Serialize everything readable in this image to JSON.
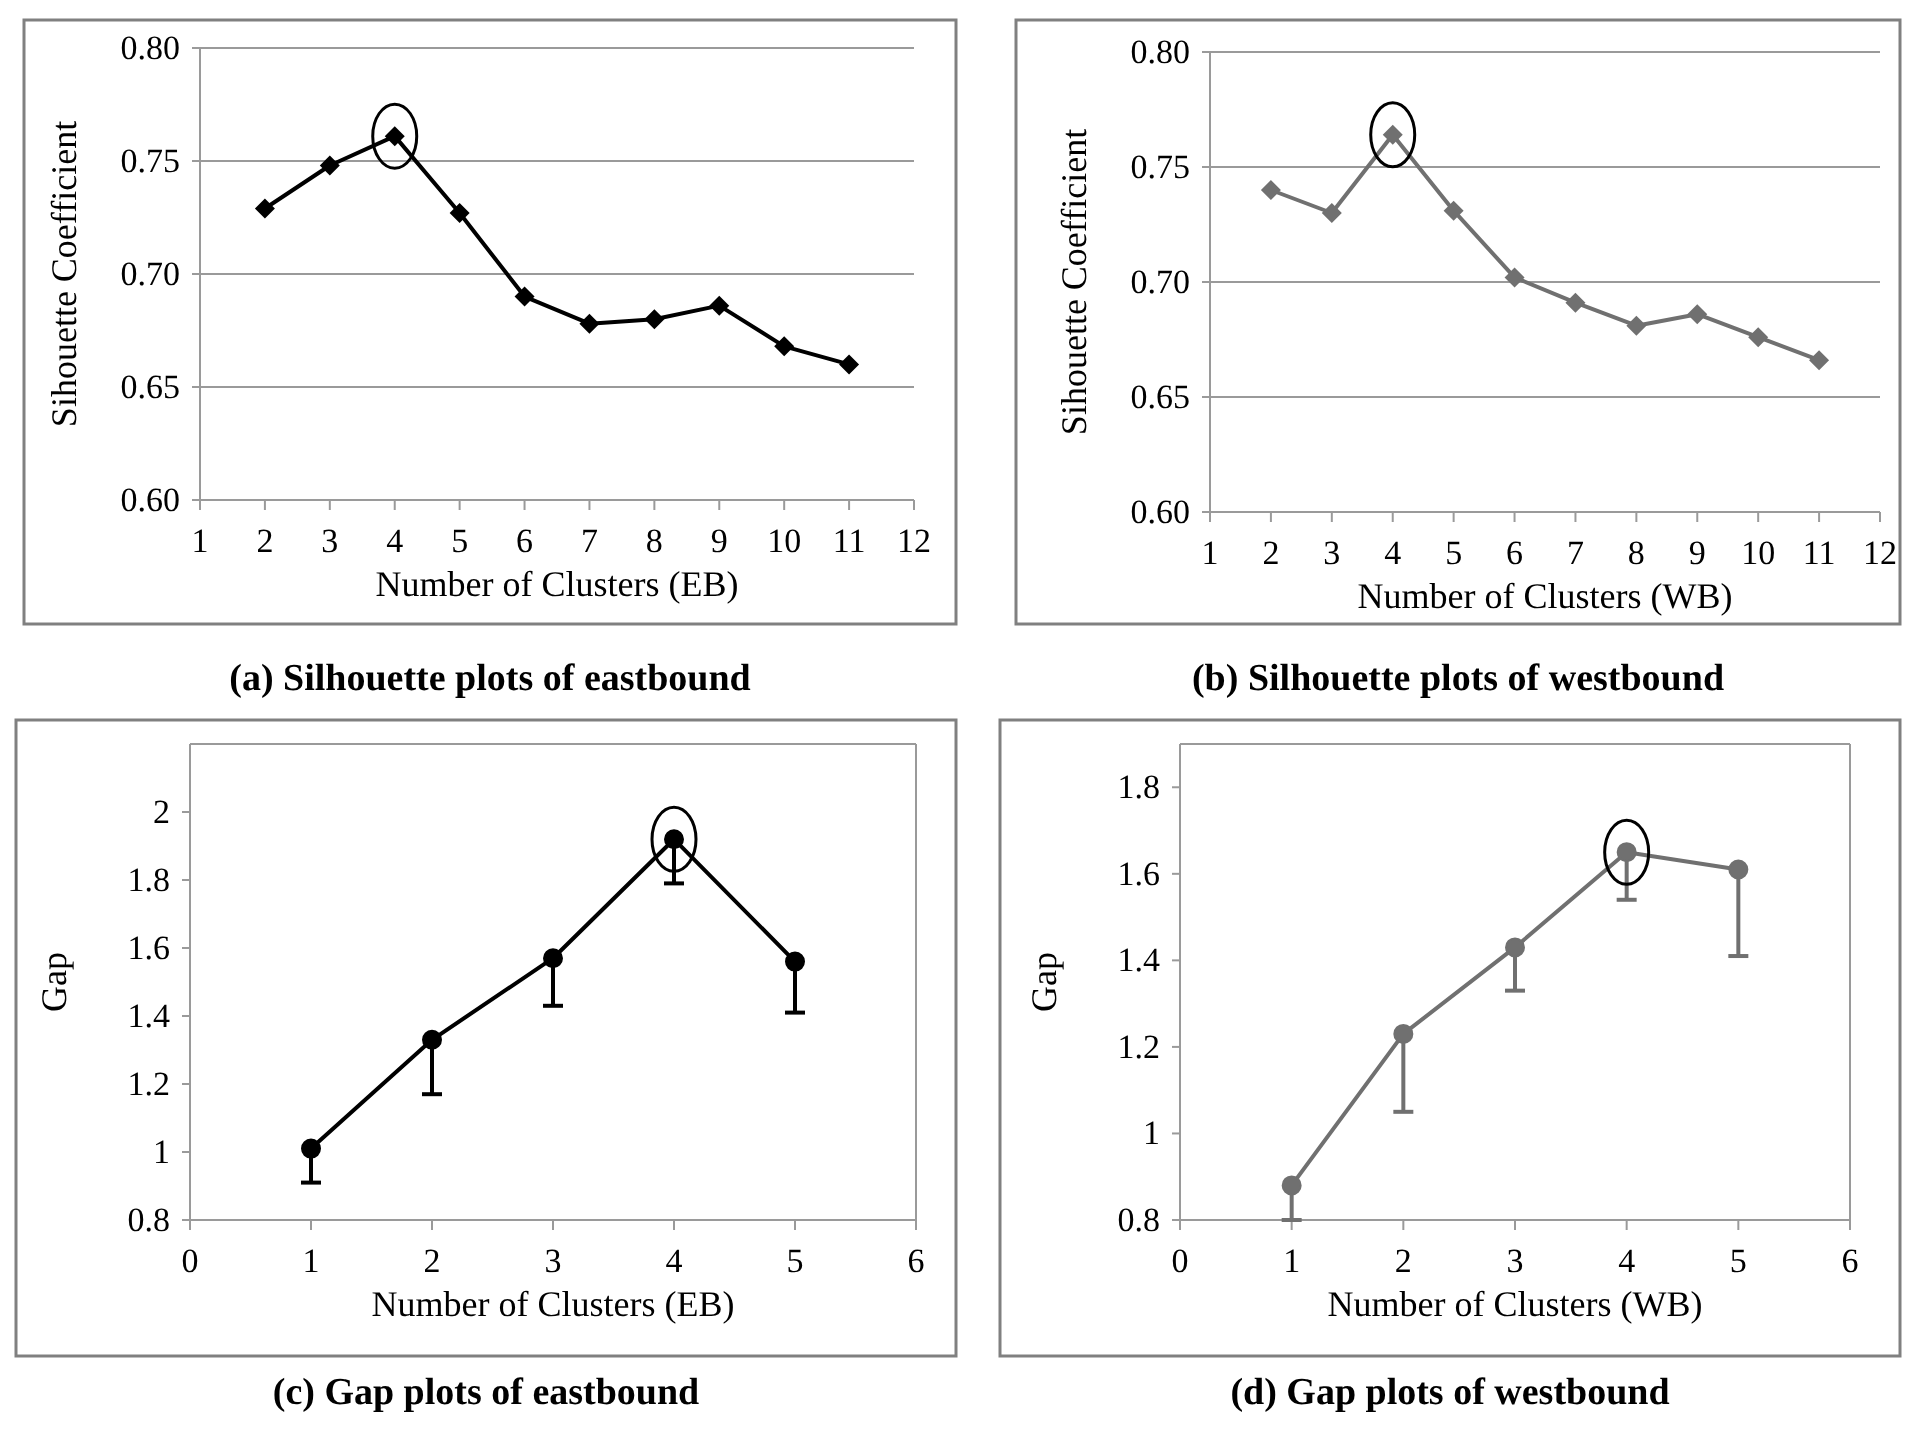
{
  "chart_data": [
    {
      "type": "line",
      "title": "(a) Silhouette plots of eastbound",
      "xlabel": "Number of Clusters (EB)",
      "ylabel": "Sihouette Coefficient",
      "x": [
        2,
        3,
        4,
        5,
        6,
        7,
        8,
        9,
        10,
        11
      ],
      "series": [
        {
          "color": "#000000",
          "values": [
            0.729,
            0.748,
            0.761,
            0.727,
            0.69,
            0.678,
            0.68,
            0.686,
            0.668,
            0.66
          ]
        }
      ],
      "xlim": [
        1,
        12
      ],
      "xticks": [
        1,
        2,
        3,
        4,
        5,
        6,
        7,
        8,
        9,
        10,
        11,
        12
      ],
      "ylim": [
        0.6,
        0.8
      ],
      "yticks": [
        {
          "value": 0.6,
          "label": "0.60"
        },
        {
          "value": 0.65,
          "label": "0.65"
        },
        {
          "value": 0.7,
          "label": "0.70"
        },
        {
          "value": 0.75,
          "label": "0.75"
        },
        {
          "value": 0.8,
          "label": "0.80"
        }
      ],
      "grid": "y",
      "marker": "diamond"
    },
    {
      "type": "line",
      "title": "(b) Silhouette plots of westbound",
      "xlabel": "Number of Clusters (WB)",
      "ylabel": "Sihouette Coefficient",
      "x": [
        2,
        3,
        4,
        5,
        6,
        7,
        8,
        9,
        10,
        11
      ],
      "series": [
        {
          "color": "#707070",
          "values": [
            0.74,
            0.73,
            0.764,
            0.731,
            0.702,
            0.691,
            0.681,
            0.686,
            0.676,
            0.666
          ]
        }
      ],
      "xlim": [
        1,
        12
      ],
      "xticks": [
        1,
        2,
        3,
        4,
        5,
        6,
        7,
        8,
        9,
        10,
        11,
        12
      ],
      "ylim": [
        0.6,
        0.8
      ],
      "yticks": [
        {
          "value": 0.6,
          "label": "0.60"
        },
        {
          "value": 0.65,
          "label": "0.65"
        },
        {
          "value": 0.7,
          "label": "0.70"
        },
        {
          "value": 0.75,
          "label": "0.75"
        },
        {
          "value": 0.8,
          "label": "0.80"
        }
      ],
      "grid": "y",
      "marker": "diamond"
    },
    {
      "type": "line",
      "title": "(c) Gap plots of eastbound",
      "xlabel": "Number of Clusters (EB)",
      "ylabel": "Gap",
      "x": [
        1,
        2,
        3,
        4,
        5
      ],
      "series": [
        {
          "color": "#000000",
          "values": [
            1.01,
            1.33,
            1.57,
            1.92,
            1.56
          ],
          "errors": [
            [
              0.91,
              1.01
            ],
            [
              1.17,
              1.33
            ],
            [
              1.43,
              1.57
            ],
            [
              1.79,
              1.92
            ],
            [
              1.41,
              1.56
            ]
          ]
        }
      ],
      "xlim": [
        0,
        6
      ],
      "xticks": [
        0,
        1,
        2,
        3,
        4,
        5,
        6
      ],
      "ylim": [
        0.8,
        2.2
      ],
      "yticks": [
        0.8,
        1,
        1.2,
        1.4,
        1.6,
        1.8,
        2
      ],
      "grid": false,
      "marker": "circle"
    },
    {
      "type": "line",
      "title": "(d) Gap plots of westbound",
      "xlabel": "Number of Clusters (WB)",
      "ylabel": "Gap",
      "x": [
        1,
        2,
        3,
        4,
        5
      ],
      "series": [
        {
          "color": "#707070",
          "values": [
            0.88,
            1.23,
            1.43,
            1.65,
            1.61
          ],
          "errors": [
            [
              0.8,
              0.88
            ],
            [
              1.05,
              1.23
            ],
            [
              1.33,
              1.43
            ],
            [
              1.54,
              1.65
            ],
            [
              1.41,
              1.61
            ]
          ]
        }
      ],
      "xlim": [
        0,
        6
      ],
      "xticks": [
        0,
        1,
        2,
        3,
        4,
        5,
        6
      ],
      "ylim": [
        0.8,
        1.9
      ],
      "yticks": [
        0.8,
        1,
        1.2,
        1.4,
        1.6,
        1.8
      ],
      "grid": false,
      "marker": "circle"
    }
  ]
}
